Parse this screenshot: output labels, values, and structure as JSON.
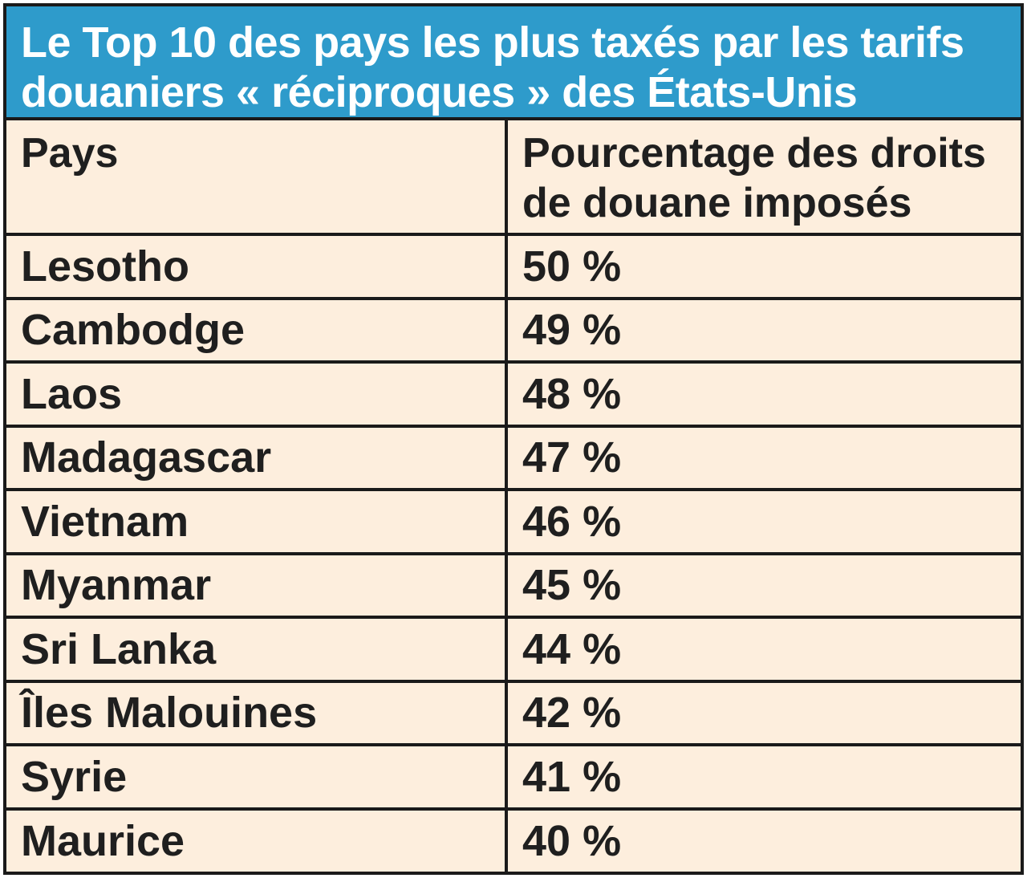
{
  "title": "Le Top 10 des pays les plus taxés par les tarifs douaniers « réciproques » des États-Unis",
  "table": {
    "headers": {
      "country": "Pays",
      "tariff": "Pourcentage des droits de douane imposés"
    },
    "rows": [
      {
        "country": "Lesotho",
        "tariff": "50 %"
      },
      {
        "country": "Cambodge",
        "tariff": "49 %"
      },
      {
        "country": "Laos",
        "tariff": "48 %"
      },
      {
        "country": "Madagascar",
        "tariff": "47 %"
      },
      {
        "country": "Vietnam",
        "tariff": "46 %"
      },
      {
        "country": "Myanmar",
        "tariff": "45 %"
      },
      {
        "country": "Sri Lanka",
        "tariff": "44 %"
      },
      {
        "country": "Îles Malouines",
        "tariff": "42 %"
      },
      {
        "country": "Syrie",
        "tariff": "41 %"
      },
      {
        "country": "Maurice",
        "tariff": "40 %"
      }
    ]
  },
  "colors": {
    "header_background": "#2e9bcb",
    "header_text": "#ffffff",
    "table_background": "#fdeedd",
    "border": "#1a1a1a",
    "text": "#1f1f1f"
  }
}
